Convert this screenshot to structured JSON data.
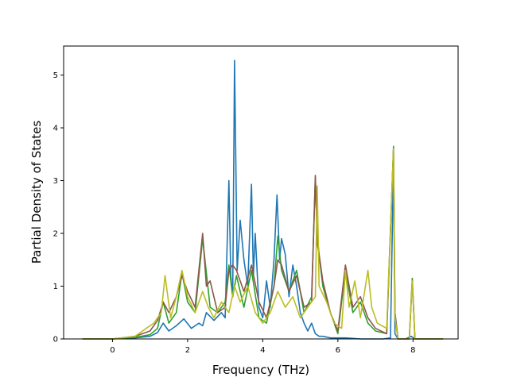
{
  "chart_data": {
    "type": "line",
    "title": "",
    "xlabel": "Frequency (THz)",
    "ylabel": "Partial Density of States",
    "xlim": [
      -1.3,
      9.2
    ],
    "ylim": [
      0,
      5.55
    ],
    "xticks": [
      0,
      2,
      4,
      6,
      8
    ],
    "xtick_labels": [
      "0",
      "2",
      "4",
      "6",
      "8"
    ],
    "yticks": [
      0,
      1,
      2,
      3,
      4,
      5
    ],
    "ytick_labels": [
      "0",
      "1",
      "2",
      "3",
      "4",
      "5"
    ],
    "grid": false,
    "legend": "none",
    "series": [
      {
        "color": "#1f77b4",
        "x": [
          -0.8,
          0.0,
          0.6,
          1.0,
          1.2,
          1.35,
          1.5,
          1.7,
          1.9,
          2.1,
          2.3,
          2.4,
          2.5,
          2.7,
          2.9,
          3.0,
          3.1,
          3.15,
          3.2,
          3.25,
          3.28,
          3.32,
          3.4,
          3.5,
          3.6,
          3.7,
          3.75,
          3.8,
          3.9,
          4.0,
          4.1,
          4.2,
          4.3,
          4.38,
          4.45,
          4.5,
          4.6,
          4.7,
          4.8,
          4.9,
          5.0,
          5.1,
          5.2,
          5.3,
          5.4,
          5.5,
          5.6,
          5.8,
          6.0,
          6.2,
          6.4,
          6.6,
          6.8,
          7.0,
          7.2,
          7.4,
          7.48,
          7.52,
          7.6,
          7.8,
          7.95,
          8.05,
          8.3,
          8.8
        ],
        "y": [
          0,
          0,
          0.02,
          0.05,
          0.12,
          0.3,
          0.15,
          0.25,
          0.38,
          0.2,
          0.3,
          0.25,
          0.5,
          0.35,
          0.5,
          0.4,
          3.0,
          1.2,
          0.8,
          5.28,
          3.5,
          1.3,
          2.25,
          1.5,
          1.0,
          2.93,
          1.2,
          2.0,
          0.6,
          0.4,
          1.1,
          0.6,
          1.5,
          2.73,
          1.5,
          1.9,
          1.6,
          0.8,
          1.4,
          1.0,
          0.5,
          0.3,
          0.15,
          0.3,
          0.1,
          0.05,
          0.05,
          0.02,
          0.02,
          0.02,
          0.01,
          0.0,
          0.0,
          0.0,
          0.0,
          0.02,
          3.4,
          0.1,
          0.0,
          0.0,
          0.05,
          0.0,
          0.0,
          0.0
        ]
      },
      {
        "color": "#2ca02c",
        "x": [
          -0.8,
          0.0,
          0.6,
          1.0,
          1.2,
          1.35,
          1.5,
          1.7,
          1.85,
          2.0,
          2.2,
          2.4,
          2.6,
          2.8,
          3.0,
          3.1,
          3.2,
          3.3,
          3.5,
          3.7,
          3.9,
          4.1,
          4.3,
          4.4,
          4.5,
          4.7,
          4.9,
          5.1,
          5.3,
          5.4,
          5.45,
          5.5,
          5.6,
          5.8,
          6.0,
          6.2,
          6.4,
          6.6,
          6.8,
          7.0,
          7.3,
          7.48,
          7.52,
          7.6,
          7.9,
          7.98,
          8.05,
          8.3,
          8.8
        ],
        "y": [
          0,
          0,
          0.03,
          0.08,
          0.2,
          0.7,
          0.3,
          0.5,
          1.25,
          0.7,
          0.5,
          1.9,
          0.6,
          0.5,
          0.7,
          1.4,
          0.8,
          1.2,
          0.6,
          1.3,
          0.4,
          0.3,
          1.0,
          1.95,
          1.3,
          0.9,
          1.3,
          0.5,
          0.8,
          3.05,
          2.0,
          1.6,
          1.0,
          0.5,
          0.1,
          1.3,
          0.5,
          0.7,
          0.3,
          0.15,
          0.1,
          3.65,
          0.5,
          0.0,
          0.0,
          1.15,
          0.0,
          0.0,
          0.0
        ]
      },
      {
        "color": "#8c564b",
        "x": [
          -0.8,
          0.0,
          0.6,
          1.0,
          1.2,
          1.35,
          1.5,
          1.7,
          1.85,
          2.0,
          2.2,
          2.4,
          2.5,
          2.6,
          2.8,
          3.0,
          3.1,
          3.2,
          3.3,
          3.5,
          3.7,
          3.9,
          4.1,
          4.3,
          4.4,
          4.5,
          4.7,
          4.9,
          5.1,
          5.3,
          5.4,
          5.45,
          5.5,
          5.6,
          5.8,
          6.0,
          6.2,
          6.4,
          6.6,
          6.8,
          7.0,
          7.3,
          7.48,
          7.52,
          7.6,
          7.9,
          7.98,
          8.05,
          8.3,
          8.8
        ],
        "y": [
          0,
          0,
          0.05,
          0.15,
          0.35,
          0.7,
          0.5,
          0.8,
          1.2,
          0.9,
          0.6,
          2.0,
          1.0,
          1.1,
          0.5,
          0.6,
          1.3,
          1.4,
          1.3,
          0.9,
          1.4,
          0.7,
          0.4,
          1.0,
          1.5,
          1.4,
          0.9,
          1.2,
          0.6,
          0.7,
          3.1,
          1.8,
          1.6,
          1.1,
          0.5,
          0.15,
          1.4,
          0.6,
          0.8,
          0.4,
          0.2,
          0.1,
          3.6,
          0.5,
          0.0,
          0.0,
          1.1,
          0.0,
          0.0,
          0.0
        ]
      },
      {
        "color": "#bcbd22",
        "x": [
          -0.8,
          0.0,
          0.6,
          0.9,
          1.1,
          1.3,
          1.4,
          1.55,
          1.7,
          1.85,
          2.0,
          2.2,
          2.4,
          2.55,
          2.7,
          2.9,
          3.1,
          3.25,
          3.4,
          3.6,
          3.8,
          4.0,
          4.2,
          4.4,
          4.6,
          4.8,
          5.0,
          5.2,
          5.4,
          5.45,
          5.5,
          5.7,
          5.9,
          6.1,
          6.2,
          6.3,
          6.45,
          6.6,
          6.8,
          6.9,
          7.05,
          7.3,
          7.48,
          7.52,
          7.6,
          7.9,
          7.98,
          8.05,
          8.3,
          8.8
        ],
        "y": [
          0,
          0,
          0.05,
          0.2,
          0.3,
          0.5,
          1.2,
          0.4,
          0.8,
          1.3,
          0.8,
          0.5,
          0.9,
          0.6,
          0.4,
          0.7,
          0.5,
          1.0,
          0.7,
          1.0,
          0.5,
          0.3,
          0.5,
          0.9,
          0.6,
          0.8,
          0.4,
          0.6,
          0.8,
          2.9,
          1.0,
          0.7,
          0.3,
          0.2,
          1.3,
          0.6,
          1.1,
          0.4,
          1.3,
          0.6,
          0.3,
          0.2,
          3.6,
          0.4,
          0.0,
          0.0,
          1.1,
          0.0,
          0.0,
          0.0
        ]
      }
    ]
  }
}
